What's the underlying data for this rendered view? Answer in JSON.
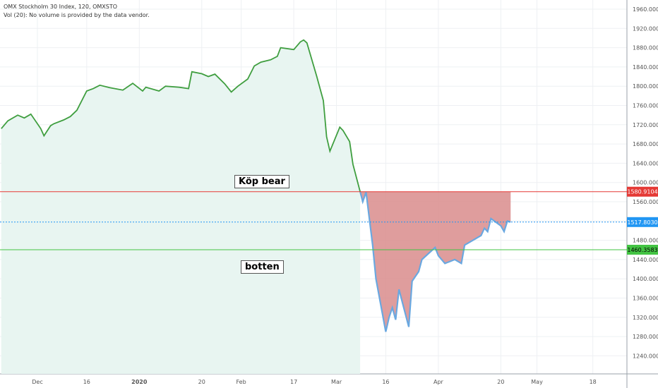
{
  "header": {
    "symbol": "OMX Stockholm 30 Index, 120, OMXSTO",
    "volume_note": "Vol (20): No volume is provided by the data vendor."
  },
  "annotations": {
    "buy_bear": "Köp bear",
    "bottom": "botten"
  },
  "colors": {
    "price_line": "#3f9e3f",
    "fill_above": "#e8f5f1",
    "below_line": "#6aa8e0",
    "fill_below": "#d98c8c",
    "red": "#e53935",
    "blue": "#2196f3",
    "green": "#43c443",
    "grid": "#eef0f3"
  },
  "chart_data": {
    "type": "line",
    "title": "OMX Stockholm 30 Index, 120, OMXSTO",
    "y_ticks": [
      "1240.0000",
      "1280.0000",
      "1320.0000",
      "1360.0000",
      "1400.0000",
      "1440.0000",
      "1480.0000",
      "1520.0000",
      "1560.0000",
      "1600.0000",
      "1640.0000",
      "1680.0000",
      "1720.0000",
      "1760.0000",
      "1800.0000",
      "1840.0000",
      "1880.0000",
      "1920.0000",
      "1960.0000"
    ],
    "x_ticks": [
      {
        "label": "Dec",
        "date": "2019-12-01"
      },
      {
        "label": "16",
        "date": "2019-12-16"
      },
      {
        "label": "2020",
        "date": "2020-01-01"
      },
      {
        "label": "20",
        "date": "2020-01-20"
      },
      {
        "label": "Feb",
        "date": "2020-02-01"
      },
      {
        "label": "17",
        "date": "2020-02-17"
      },
      {
        "label": "Mar",
        "date": "2020-03-01"
      },
      {
        "label": "16",
        "date": "2020-03-16"
      },
      {
        "label": "Apr",
        "date": "2020-04-01"
      },
      {
        "label": "20",
        "date": "2020-04-20"
      },
      {
        "label": "May",
        "date": "2020-05-01"
      },
      {
        "label": "18",
        "date": "2020-05-18"
      }
    ],
    "ylim": [
      1225,
      1975
    ],
    "grid": true,
    "price_labels": [
      {
        "label": "1580.9104",
        "value": 1580.9104,
        "color": "#e53935"
      },
      {
        "label": "1517.8030",
        "value": 1517.803,
        "color": "#2196f3"
      },
      {
        "label": "1460.3583",
        "value": 1460.3583,
        "color": "#43c443"
      }
    ],
    "series": [
      {
        "values": [
          {
            "date": "2019-11-20",
            "y": 1712
          },
          {
            "date": "2019-11-22",
            "y": 1728
          },
          {
            "date": "2019-11-25",
            "y": 1740
          },
          {
            "date": "2019-11-27",
            "y": 1734
          },
          {
            "date": "2019-11-29",
            "y": 1742
          },
          {
            "date": "2019-12-02",
            "y": 1712
          },
          {
            "date": "2019-12-03",
            "y": 1697
          },
          {
            "date": "2019-12-05",
            "y": 1718
          },
          {
            "date": "2019-12-06",
            "y": 1722
          },
          {
            "date": "2019-12-09",
            "y": 1730
          },
          {
            "date": "2019-12-11",
            "y": 1737
          },
          {
            "date": "2019-12-13",
            "y": 1750
          },
          {
            "date": "2019-12-16",
            "y": 1790
          },
          {
            "date": "2019-12-18",
            "y": 1795
          },
          {
            "date": "2019-12-20",
            "y": 1802
          },
          {
            "date": "2019-12-23",
            "y": 1797
          },
          {
            "date": "2019-12-27",
            "y": 1792
          },
          {
            "date": "2019-12-30",
            "y": 1806
          },
          {
            "date": "2020-01-02",
            "y": 1790
          },
          {
            "date": "2020-01-03",
            "y": 1798
          },
          {
            "date": "2020-01-07",
            "y": 1790
          },
          {
            "date": "2020-01-09",
            "y": 1800
          },
          {
            "date": "2020-01-13",
            "y": 1798
          },
          {
            "date": "2020-01-16",
            "y": 1795
          },
          {
            "date": "2020-01-17",
            "y": 1830
          },
          {
            "date": "2020-01-20",
            "y": 1826
          },
          {
            "date": "2020-01-22",
            "y": 1820
          },
          {
            "date": "2020-01-24",
            "y": 1825
          },
          {
            "date": "2020-01-27",
            "y": 1805
          },
          {
            "date": "2020-01-29",
            "y": 1788
          },
          {
            "date": "2020-01-31",
            "y": 1800
          },
          {
            "date": "2020-02-03",
            "y": 1815
          },
          {
            "date": "2020-02-05",
            "y": 1842
          },
          {
            "date": "2020-02-07",
            "y": 1850
          },
          {
            "date": "2020-02-10",
            "y": 1855
          },
          {
            "date": "2020-02-12",
            "y": 1862
          },
          {
            "date": "2020-02-13",
            "y": 1880
          },
          {
            "date": "2020-02-17",
            "y": 1876
          },
          {
            "date": "2020-02-19",
            "y": 1892
          },
          {
            "date": "2020-02-20",
            "y": 1896
          },
          {
            "date": "2020-02-21",
            "y": 1890
          },
          {
            "date": "2020-02-24",
            "y": 1820
          },
          {
            "date": "2020-02-26",
            "y": 1770
          },
          {
            "date": "2020-02-27",
            "y": 1695
          },
          {
            "date": "2020-02-28",
            "y": 1665
          },
          {
            "date": "2020-03-02",
            "y": 1715
          },
          {
            "date": "2020-03-03",
            "y": 1708
          },
          {
            "date": "2020-03-05",
            "y": 1685
          },
          {
            "date": "2020-03-06",
            "y": 1638
          },
          {
            "date": "2020-03-09",
            "y": 1560
          },
          {
            "date": "2020-03-10",
            "y": 1580
          },
          {
            "date": "2020-03-12",
            "y": 1470
          },
          {
            "date": "2020-03-13",
            "y": 1400
          },
          {
            "date": "2020-03-16",
            "y": 1290
          },
          {
            "date": "2020-03-17",
            "y": 1320
          },
          {
            "date": "2020-03-18",
            "y": 1340
          },
          {
            "date": "2020-03-19",
            "y": 1315
          },
          {
            "date": "2020-03-20",
            "y": 1378
          },
          {
            "date": "2020-03-23",
            "y": 1300
          },
          {
            "date": "2020-03-24",
            "y": 1395
          },
          {
            "date": "2020-03-26",
            "y": 1415
          },
          {
            "date": "2020-03-27",
            "y": 1440
          },
          {
            "date": "2020-03-31",
            "y": 1465
          },
          {
            "date": "2020-04-01",
            "y": 1448
          },
          {
            "date": "2020-04-03",
            "y": 1432
          },
          {
            "date": "2020-04-06",
            "y": 1440
          },
          {
            "date": "2020-04-08",
            "y": 1432
          },
          {
            "date": "2020-04-09",
            "y": 1470
          },
          {
            "date": "2020-04-14",
            "y": 1490
          },
          {
            "date": "2020-04-15",
            "y": 1505
          },
          {
            "date": "2020-04-16",
            "y": 1498
          },
          {
            "date": "2020-04-17",
            "y": 1525
          },
          {
            "date": "2020-04-20",
            "y": 1510
          },
          {
            "date": "2020-04-21",
            "y": 1498
          },
          {
            "date": "2020-04-22",
            "y": 1520
          },
          {
            "date": "2020-04-23",
            "y": 1517.803
          }
        ]
      }
    ]
  }
}
